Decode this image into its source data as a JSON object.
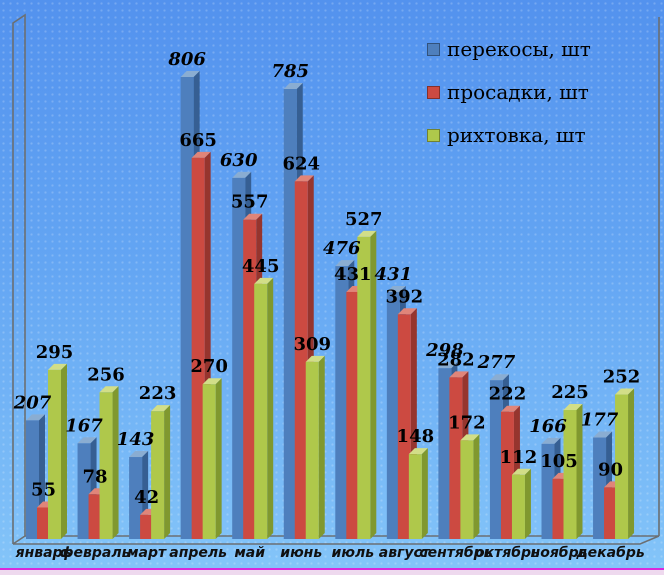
{
  "chart_data": {
    "type": "bar",
    "variant": "3d-clustered-column",
    "title": "",
    "xlabel": "",
    "ylabel": "",
    "ylim": [
      0,
      850
    ],
    "grid": false,
    "legend_position": "top-right",
    "value_labels": true,
    "categories": [
      "январь",
      "февраль",
      "март",
      "апрель",
      "май",
      "июнь",
      "июль",
      "август",
      "сентябрь",
      "октябрь",
      "ноябрь",
      "декабрь"
    ],
    "series": [
      {
        "name": "перекосы, шт",
        "color": "#4e7fbd",
        "color_light": "#8aadd2",
        "color_dark": "#365f93",
        "label_style": "italic",
        "values": [
          207,
          167,
          143,
          806,
          630,
          785,
          476,
          431,
          298,
          277,
          166,
          177
        ]
      },
      {
        "name": "просадки, шт",
        "color": "#cc4a41",
        "color_light": "#e08579",
        "color_dark": "#96352e",
        "label_style": "normal",
        "values": [
          55,
          78,
          42,
          665,
          557,
          624,
          431,
          392,
          282,
          222,
          105,
          90
        ]
      },
      {
        "name": "рихтовка, шт",
        "color": "#afc84b",
        "color_light": "#d2de88",
        "color_dark": "#80982f",
        "label_style": "normal",
        "values": [
          295,
          256,
          223,
          270,
          445,
          309,
          527,
          148,
          172,
          112,
          225,
          252
        ]
      }
    ]
  },
  "frame": {
    "wall_outline_color": "#6b6f72",
    "background_top": "#5392ee",
    "background_bottom": "#84c5f9",
    "bottom_border_color": "#da2ada",
    "bottom_strip_color": "#eed9ee"
  }
}
